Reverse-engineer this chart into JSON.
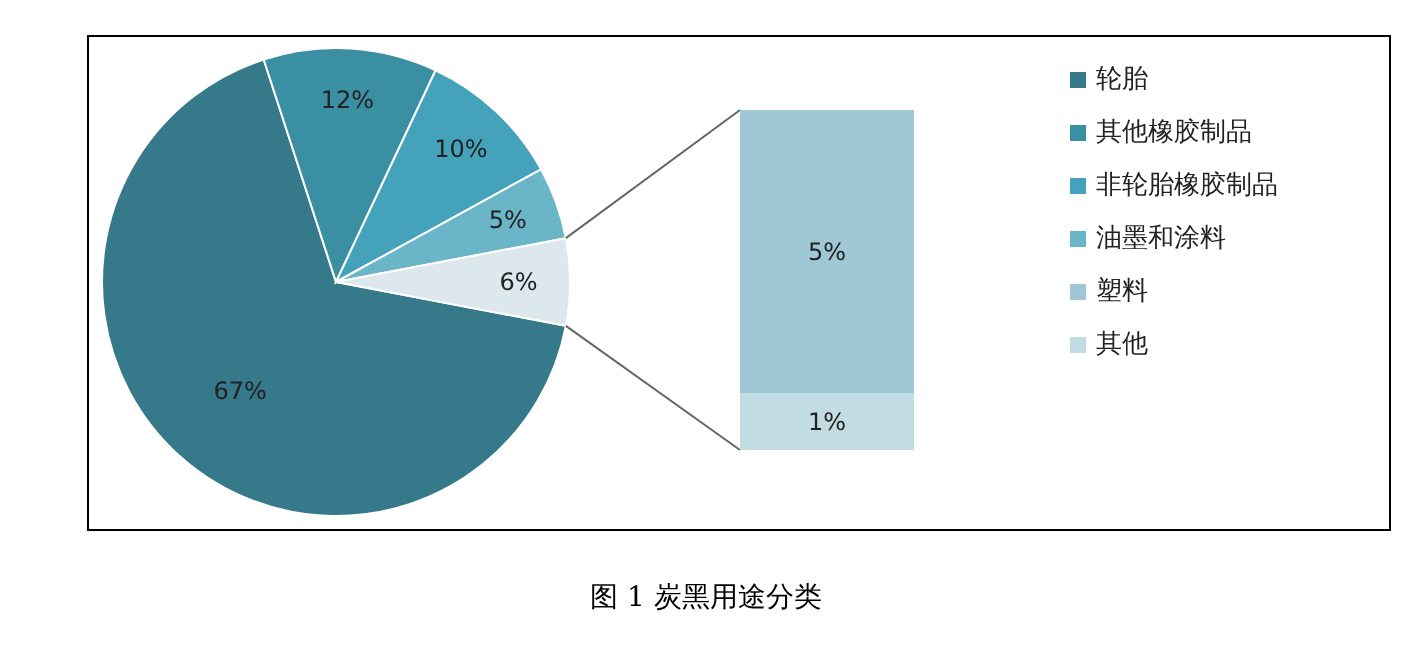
{
  "chart_data": [
    {
      "type": "pie",
      "title": "图 1  炭黑用途分类",
      "categories": [
        "轮胎",
        "其他橡胶制品",
        "非轮胎橡胶制品",
        "油墨和涂料",
        null
      ],
      "values": [
        67,
        12,
        10,
        5,
        6
      ],
      "value_labels": [
        "67%",
        "12%",
        "10%",
        "5%",
        "6%"
      ],
      "colors": [
        "#36798a",
        "#3a8fa2",
        "#44a3ba",
        "#6ab6c8",
        "#dce8ee"
      ],
      "legend": "right"
    },
    {
      "type": "bar",
      "stacked": true,
      "categories": [
        null
      ],
      "legend": "right",
      "series": [
        {
          "name": "其他",
          "color": "#c2dce4",
          "values": [
            1
          ],
          "value_labels": [
            "1%"
          ]
        },
        {
          "name": "塑料",
          "color": "#9ec8d6",
          "values": [
            5
          ],
          "value_labels": [
            "5%"
          ]
        }
      ]
    }
  ]
}
